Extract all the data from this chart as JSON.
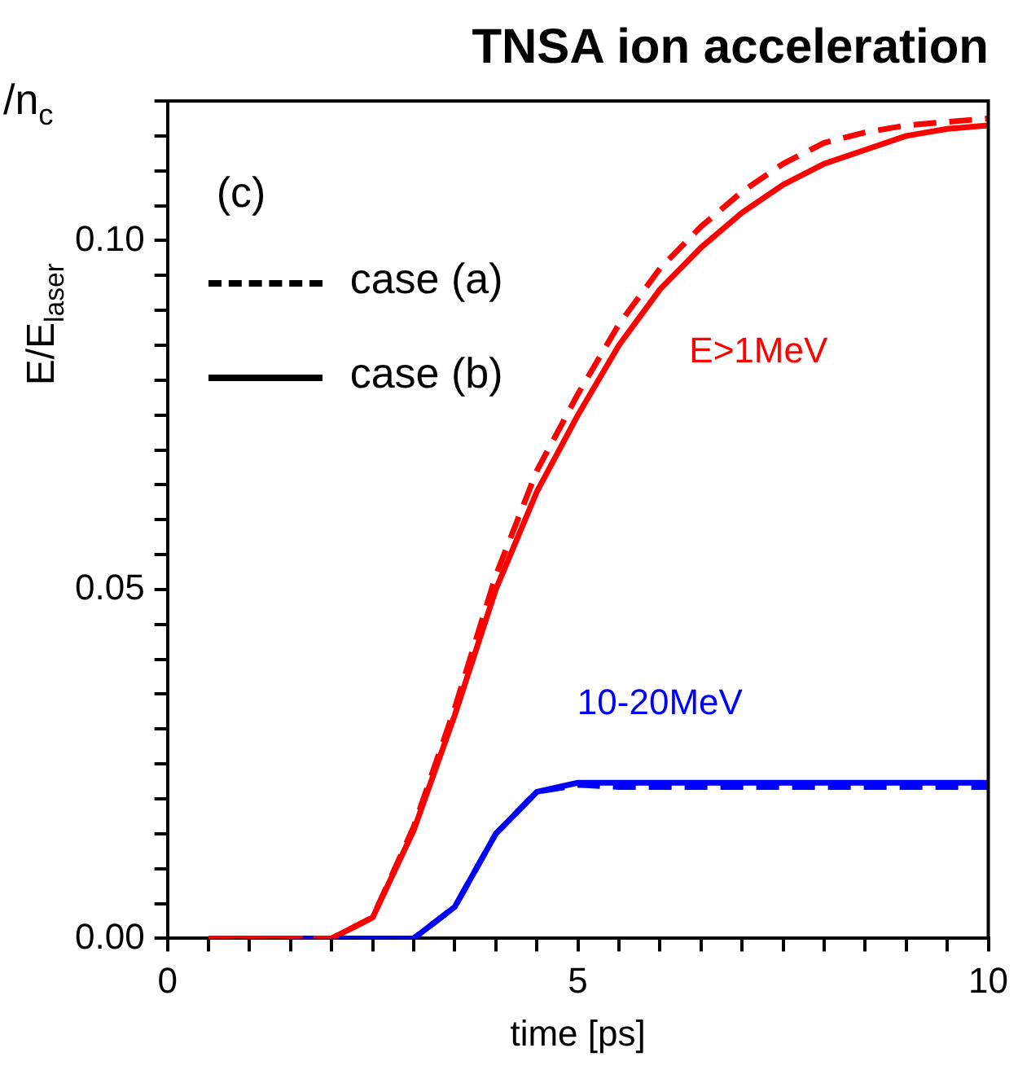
{
  "chart_data": {
    "type": "line",
    "title": "TNSA ion acceleration",
    "xlabel": "time [ps]",
    "ylabel": "E/E$_{laser}$",
    "xlim": [
      0,
      10
    ],
    "ylim": [
      0,
      0.12
    ],
    "xticks": [
      0,
      {
        "value": 0.5,
        "label": null
      },
      {
        "value": 1,
        "label": null
      },
      {
        "value": 1.5,
        "label": null
      },
      {
        "value": 2,
        "label": null
      },
      {
        "value": 2.5,
        "label": null
      },
      {
        "value": 3,
        "label": null
      },
      {
        "value": 3.5,
        "label": null
      },
      {
        "value": 4,
        "label": null
      },
      {
        "value": 4.5,
        "label": null
      },
      5,
      {
        "value": 5.5,
        "label": null
      },
      {
        "value": 6,
        "label": null
      },
      {
        "value": 6.5,
        "label": null
      },
      {
        "value": 7,
        "label": null
      },
      {
        "value": 7.5,
        "label": null
      },
      {
        "value": 8,
        "label": null
      },
      {
        "value": 8.5,
        "label": null
      },
      {
        "value": 9,
        "label": null
      },
      {
        "value": 9.5,
        "label": null
      },
      10
    ],
    "yticks": [
      {
        "value": 0,
        "label": "0.00"
      },
      {
        "value": 0.005,
        "label": null
      },
      {
        "value": 0.01,
        "label": null
      },
      {
        "value": 0.015,
        "label": null
      },
      {
        "value": 0.02,
        "label": null
      },
      {
        "value": 0.025,
        "label": null
      },
      {
        "value": 0.03,
        "label": null
      },
      {
        "value": 0.035,
        "label": null
      },
      {
        "value": 0.04,
        "label": null
      },
      {
        "value": 0.045,
        "label": null
      },
      0.05,
      {
        "value": 0.055,
        "label": null
      },
      {
        "value": 0.06,
        "label": null
      },
      {
        "value": 0.065,
        "label": null
      },
      {
        "value": 0.07,
        "label": null
      },
      {
        "value": 0.075,
        "label": null
      },
      {
        "value": 0.08,
        "label": null
      },
      {
        "value": 0.085,
        "label": null
      },
      {
        "value": 0.09,
        "label": null
      },
      {
        "value": 0.095,
        "label": null
      },
      {
        "value": 0.1,
        "label": "0.10"
      },
      {
        "value": 0.105,
        "label": null
      },
      {
        "value": 0.11,
        "label": null
      },
      {
        "value": 0.115,
        "label": null
      },
      {
        "value": 0.12,
        "label": null
      }
    ],
    "grid": false,
    "legend": false,
    "marker": "none",
    "x": [
      0.5,
      1,
      1.5,
      2,
      2.5,
      3,
      3.5,
      4,
      4.5,
      5,
      5.5,
      6,
      6.5,
      7,
      7.5,
      8,
      8.5,
      9,
      9.5,
      10
    ],
    "series": [
      {
        "color": "#ff0000",
        "line_style": "dashed",
        "values": [
          0,
          0,
          0,
          0,
          0.003,
          0.016,
          0.033,
          0.052,
          0.067,
          0.078,
          0.088,
          0.096,
          0.102,
          0.107,
          0.111,
          0.114,
          0.1155,
          0.1165,
          0.117,
          0.1175
        ]
      },
      {
        "color": "#ff0000",
        "line_style": "solid",
        "values": [
          0,
          0,
          0,
          0,
          0.003,
          0.0155,
          0.032,
          0.05,
          0.064,
          0.075,
          0.085,
          0.093,
          0.099,
          0.104,
          0.108,
          0.111,
          0.113,
          0.115,
          0.116,
          0.1165
        ]
      },
      {
        "color": "#0000ff",
        "line_style": "dashed",
        "values": [
          null,
          null,
          0,
          0,
          0,
          0,
          0.0045,
          0.015,
          0.021,
          0.022,
          0.0217,
          0.0217,
          0.0217,
          0.0217,
          0.0217,
          0.0217,
          0.0217,
          0.0217,
          0.0217,
          0.0217
        ]
      },
      {
        "color": "#0000ff",
        "line_style": "solid",
        "values": [
          null,
          null,
          0,
          0,
          0,
          0,
          0.0045,
          0.015,
          0.021,
          0.0223,
          0.0223,
          0.0223,
          0.0223,
          0.0223,
          0.0223,
          0.0223,
          0.0223,
          0.0223,
          0.0223,
          0.0223
        ]
      }
    ],
    "annotations": [
      "(c)",
      "case (a)",
      "case (b)",
      "/n$_{c}$",
      "E>1MeV",
      "10-20MeV"
    ]
  }
}
